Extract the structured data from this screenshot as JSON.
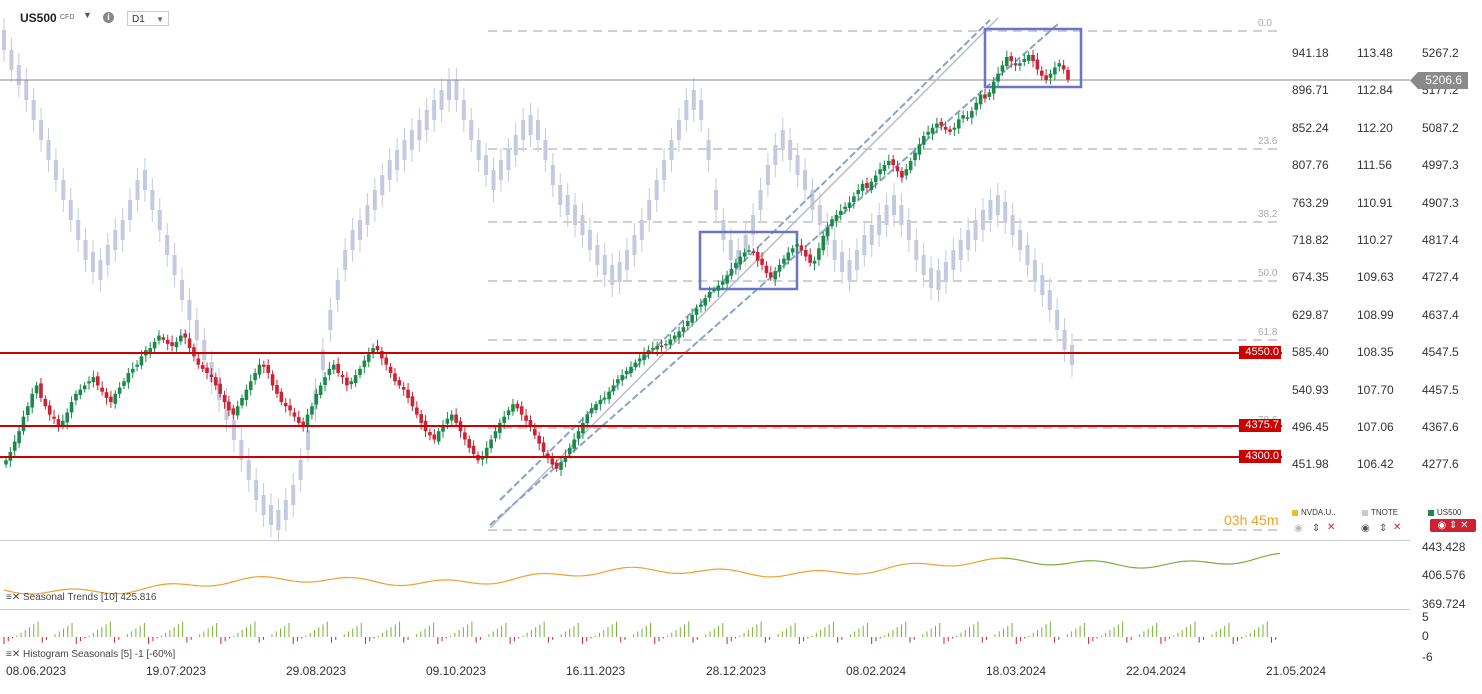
{
  "header": {
    "symbol": "US500",
    "symbol_type": "CFD",
    "timeframe": "D1",
    "info_icon": "info-icon",
    "dropdown_icon": "chevron-down-icon"
  },
  "colors": {
    "up": "#1a8a4a",
    "down": "#cc2233",
    "ghost": "#c5c9e0",
    "support": "#cc0000",
    "box": "#6a74c8",
    "orange_line": "#f0a030",
    "green_line": "#7ab03a",
    "price_tag": "#8a8a8a"
  },
  "price": {
    "current_label": "5206.6"
  },
  "chart_data": {
    "type": "candlestick",
    "ohlc_sample_note_free": true,
    "dates_axis": [
      "08.06.2023",
      "19.07.2023",
      "29.08.2023",
      "09.10.2023",
      "16.11.2023",
      "28.12.2023",
      "08.02.2024",
      "18.03.2024",
      "22.04.2024",
      "21.05.2024"
    ],
    "y_axis_us500": [
      "5267.2",
      "5177.2",
      "5087.2",
      "4997.3",
      "4907.3",
      "4817.4",
      "4727.4",
      "4637.4",
      "4547.5",
      "4457.5",
      "4367.6",
      "4277.6"
    ],
    "y_axis_nvda": [
      "941.18",
      "896.71",
      "852.24",
      "807.76",
      "763.29",
      "718.82",
      "674.35",
      "629.87",
      "585.40",
      "540.93",
      "496.45",
      "451.98"
    ],
    "y_axis_tnote": [
      "113.48",
      "112.84",
      "112.20",
      "111.56",
      "110.91",
      "110.27",
      "109.63",
      "108.99",
      "108.35",
      "107.70",
      "107.06",
      "106.42"
    ],
    "ylim_us500": [
      4250,
      5310
    ],
    "fib_levels": [
      "0.0",
      "23.6",
      "38.2",
      "50.0",
      "61.8",
      "78.6"
    ],
    "support_levels": [
      "4550.0",
      "4375.7",
      "4300.0"
    ],
    "series": [
      {
        "name": "NVDA.U..",
        "color": "#e8c030"
      },
      {
        "name": "TNOTE",
        "color": "#c5c9e0"
      },
      {
        "name": "US500",
        "color": "#1a8a4a"
      }
    ],
    "us500_closes": [
      4290,
      4310,
      4335,
      4360,
      4395,
      4420,
      4450,
      4470,
      4440,
      4420,
      4400,
      4390,
      4370,
      4385,
      4405,
      4430,
      4450,
      4460,
      4470,
      4480,
      4490,
      4470,
      4455,
      4440,
      4430,
      4450,
      4465,
      4480,
      4500,
      4510,
      4520,
      4540,
      4555,
      4560,
      4575,
      4590,
      4580,
      4570,
      4565,
      4575,
      4590,
      4585,
      4560,
      4540,
      4520,
      4510,
      4500,
      4490,
      4470,
      4450,
      4430,
      4410,
      4400,
      4420,
      4440,
      4460,
      4480,
      4500,
      4520,
      4515,
      4500,
      4470,
      4450,
      4430,
      4420,
      4410,
      4395,
      4380,
      4375,
      4400,
      4420,
      4450,
      4470,
      4490,
      4510,
      4520,
      4500,
      4490,
      4470,
      4480,
      4495,
      4510,
      4530,
      4545,
      4560,
      4555,
      4535,
      4520,
      4500,
      4480,
      4470,
      4460,
      4440,
      4420,
      4400,
      4380,
      4360,
      4350,
      4340,
      4360,
      4375,
      4390,
      4400,
      4380,
      4360,
      4340,
      4320,
      4305,
      4290,
      4300,
      4320,
      4340,
      4360,
      4380,
      4395,
      4410,
      4425,
      4415,
      4400,
      4385,
      4370,
      4350,
      4330,
      4310,
      4295,
      4280,
      4270,
      4285,
      4300,
      4320,
      4340,
      4360,
      4380,
      4400,
      4415,
      4425,
      4435,
      4440,
      4455,
      4470,
      4485,
      4495,
      4505,
      4515,
      4525,
      4535,
      4545,
      4555,
      4560,
      4565,
      4565,
      4570,
      4580,
      4590,
      4600,
      4610,
      4625,
      4640,
      4655,
      4665,
      4680,
      4695,
      4700,
      4710,
      4720,
      4735,
      4750,
      4765,
      4780,
      4790,
      4795,
      4790,
      4770,
      4760,
      4740,
      4730,
      4745,
      4760,
      4775,
      4790,
      4800,
      4810,
      4795,
      4780,
      4765,
      4770,
      4800,
      4830,
      4850,
      4870,
      4880,
      4890,
      4900,
      4910,
      4925,
      4940,
      4955,
      4945,
      4960,
      4975,
      4990,
      5000,
      5010,
      5000,
      4985,
      4970,
      4990,
      5010,
      5030,
      5050,
      5070,
      5080,
      5090,
      5100,
      5095,
      5085,
      5080,
      5090,
      5110,
      5120,
      5115,
      5130,
      5150,
      5170,
      5160,
      5175,
      5200,
      5220,
      5240,
      5260,
      5250,
      5240,
      5245,
      5255,
      5265,
      5250,
      5230,
      5215,
      5205,
      5220,
      5235,
      5245,
      5230,
      5206
    ],
    "indicators": [
      {
        "name": "Seasonal",
        "label": "Trends",
        "params": "[10]",
        "value": "425.816",
        "scale": [
          "443.428",
          "406.576",
          "369.724"
        ]
      },
      {
        "name": "Histogram",
        "label": "Seasonals",
        "params": "[5]",
        "value": "-1 [-60%]",
        "scale": [
          "5",
          "0",
          "-6"
        ]
      }
    ],
    "countdown": "03h 45m"
  }
}
